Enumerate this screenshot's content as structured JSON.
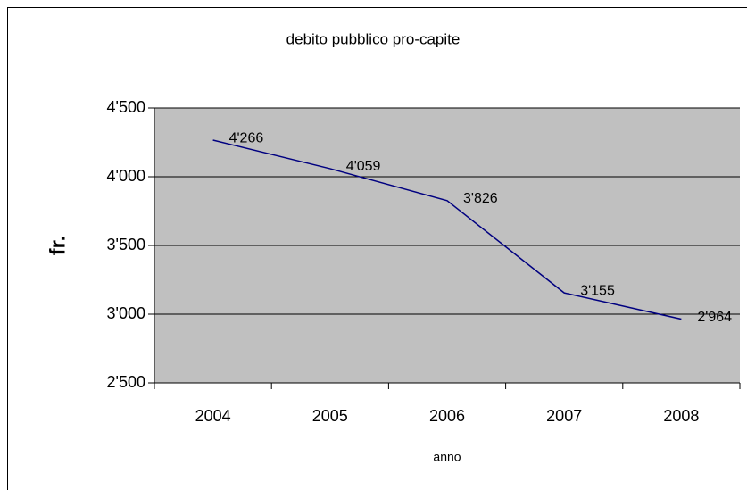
{
  "chart_data": {
    "type": "line",
    "title": "debito pubblico pro-capite",
    "x_label": "anno",
    "y_label": "fr.",
    "categories": [
      "2004",
      "2005",
      "2006",
      "2007",
      "2008"
    ],
    "series": [
      {
        "name": "debito pubblico pro-capite",
        "color": "#000080",
        "values": [
          4266,
          4059,
          3826,
          3155,
          2964
        ],
        "value_labels": [
          "4'266",
          "4'059",
          "3'826",
          "3'155",
          "2'964"
        ]
      }
    ],
    "ylim": [
      2500,
      4500
    ],
    "yticks": [
      {
        "value": 2500,
        "label": "2'500"
      },
      {
        "value": 3000,
        "label": "3'000"
      },
      {
        "value": 3500,
        "label": "3'500"
      },
      {
        "value": 4000,
        "label": "4'000"
      },
      {
        "value": 4500,
        "label": "4'500"
      }
    ],
    "grid": true,
    "plot_background": "#c0c0c0"
  }
}
